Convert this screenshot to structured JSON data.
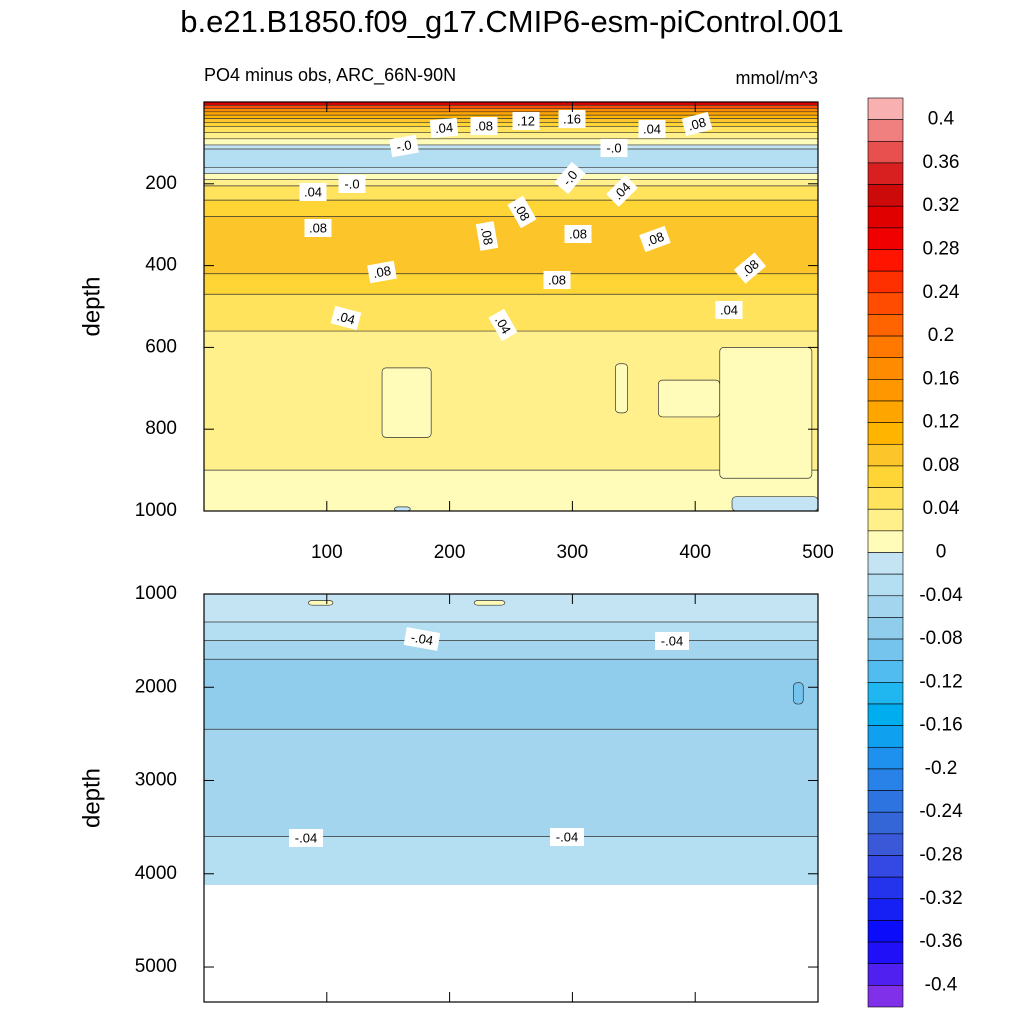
{
  "chart_data": {
    "type": "contour",
    "title": "b.e21.B1850.f09_g17.CMIP6-esm-piControl.001",
    "subtitle": "PO4 minus obs, ARC_66N-90N",
    "units": "mmol/m^3",
    "colorbar": {
      "levels": [
        0.4,
        0.38,
        0.36,
        0.34,
        0.32,
        0.3,
        0.28,
        0.26,
        0.24,
        0.22,
        0.2,
        0.18,
        0.16,
        0.14,
        0.12,
        0.1,
        0.08,
        0.06,
        0.04,
        0.02,
        0,
        -0.02,
        -0.04,
        -0.06,
        -0.08,
        -0.1,
        -0.12,
        -0.14,
        -0.16,
        -0.18,
        -0.2,
        -0.22,
        -0.24,
        -0.26,
        -0.28,
        -0.3,
        -0.32,
        -0.34,
        -0.36,
        -0.38,
        -0.4
      ],
      "colors": [
        "#f8b0b0",
        "#f08080",
        "#e85050",
        "#d82020",
        "#cc0a0a",
        "#e00000",
        "#f00000",
        "#ff1400",
        "#ff3000",
        "#ff4c00",
        "#ff6400",
        "#ff7800",
        "#ff8c00",
        "#ff9800",
        "#ffa500",
        "#ffb400",
        "#fcc52a",
        "#ffd535",
        "#ffe35c",
        "#fff08c",
        "#fffbb8",
        "#c4e4f4",
        "#b4def2",
        "#a3d5ee",
        "#90cdec",
        "#74c4ee",
        "#50bcf0",
        "#20b6f0",
        "#00aef0",
        "#10a0f0",
        "#1e90ee",
        "#2882e8",
        "#2e74e0",
        "#3466d8",
        "#3a58d8",
        "#3448e4",
        "#2434ec",
        "#1620f4",
        "#0a0cfa",
        "#2010f8",
        "#5020f0",
        "#8030e8"
      ],
      "ticks": [
        0.4,
        0.36,
        0.32,
        0.28,
        0.24,
        0.2,
        0.16,
        0.12,
        0.08,
        0.04,
        0,
        -0.04,
        -0.08,
        -0.12,
        -0.16,
        -0.2,
        -0.24,
        -0.28,
        -0.32,
        -0.36,
        -0.4
      ]
    },
    "panels": [
      {
        "ylabel": "depth",
        "xlim": [
          0,
          500
        ],
        "xticks": [
          100,
          200,
          300,
          400,
          500
        ],
        "xtick_labels": true,
        "ylim": [
          0,
          1000
        ],
        "yticks": [
          200,
          400,
          600,
          800,
          1000
        ],
        "y_reversed": true,
        "bands": [
          {
            "top": 0,
            "bottom": 8,
            "value": 0.31
          },
          {
            "top": 8,
            "bottom": 16,
            "value": 0.23
          },
          {
            "top": 16,
            "bottom": 24,
            "value": 0.17
          },
          {
            "top": 24,
            "bottom": 32,
            "value": 0.13
          },
          {
            "top": 32,
            "bottom": 40,
            "value": 0.11
          },
          {
            "top": 40,
            "bottom": 50,
            "value": 0.09
          },
          {
            "top": 50,
            "bottom": 60,
            "value": 0.07
          },
          {
            "top": 60,
            "bottom": 75,
            "value": 0.05
          },
          {
            "top": 75,
            "bottom": 90,
            "value": 0.03
          },
          {
            "top": 90,
            "bottom": 105,
            "value": 0.01
          },
          {
            "top": 105,
            "bottom": 115,
            "value": -0.01
          },
          {
            "top": 115,
            "bottom": 160,
            "value": -0.03
          },
          {
            "top": 160,
            "bottom": 175,
            "value": -0.01
          },
          {
            "top": 175,
            "bottom": 190,
            "value": 0.01
          },
          {
            "top": 190,
            "bottom": 205,
            "value": 0.03
          },
          {
            "top": 205,
            "bottom": 240,
            "value": 0.05
          },
          {
            "top": 240,
            "bottom": 280,
            "value": 0.07
          },
          {
            "top": 280,
            "bottom": 420,
            "value": 0.09
          },
          {
            "top": 420,
            "bottom": 470,
            "value": 0.07
          },
          {
            "top": 470,
            "bottom": 560,
            "value": 0.05
          },
          {
            "top": 560,
            "bottom": 900,
            "value": 0.03
          },
          {
            "top": 900,
            "bottom": 1000,
            "value": 0.01
          }
        ],
        "patches": [
          {
            "x0": 145,
            "x1": 185,
            "top": 650,
            "bottom": 820,
            "value": 0.01
          },
          {
            "x0": 335,
            "x1": 345,
            "top": 640,
            "bottom": 760,
            "value": 0.01
          },
          {
            "x0": 370,
            "x1": 420,
            "top": 680,
            "bottom": 770,
            "value": 0.01
          },
          {
            "x0": 420,
            "x1": 495,
            "top": 600,
            "bottom": 920,
            "value": 0.01
          },
          {
            "x0": 430,
            "x1": 500,
            "top": 965,
            "bottom": 1000,
            "value": -0.01
          },
          {
            "x0": 155,
            "x1": 168,
            "top": 990,
            "bottom": 1000,
            "value": -0.01
          }
        ],
        "contour_labels": [
          ".04",
          ".08",
          ".12",
          ".16",
          ".04",
          ".08",
          "-.0",
          "-.0",
          ".04",
          "-.0",
          "-.0",
          ".04",
          ".08",
          ".08",
          ".08",
          ".08",
          ".08",
          ".08",
          ".08",
          ".08",
          ".04",
          ".04",
          ".04"
        ]
      },
      {
        "ylabel": "depth",
        "xlim": [
          0,
          500
        ],
        "xticks": [
          100,
          200,
          300,
          400,
          500
        ],
        "xtick_labels": false,
        "ylim": [
          1000,
          5375
        ],
        "yticks": [
          1000,
          2000,
          3000,
          4000,
          5000
        ],
        "y_reversed": true,
        "bands": [
          {
            "top": 1000,
            "bottom": 1300,
            "value": -0.01
          },
          {
            "top": 1300,
            "bottom": 1500,
            "value": -0.03
          },
          {
            "top": 1500,
            "bottom": 1700,
            "value": -0.05
          },
          {
            "top": 1700,
            "bottom": 2450,
            "value": -0.07
          },
          {
            "top": 2450,
            "bottom": 3600,
            "value": -0.05
          },
          {
            "top": 3600,
            "bottom": 4120,
            "value": -0.03
          }
        ],
        "patches": [
          {
            "x0": 85,
            "x1": 105,
            "top": 1070,
            "bottom": 1120,
            "value": 0.01
          },
          {
            "x0": 220,
            "x1": 245,
            "top": 1070,
            "bottom": 1120,
            "value": 0.01
          },
          {
            "x0": 480,
            "x1": 488,
            "top": 1950,
            "bottom": 2180,
            "value": -0.09
          }
        ],
        "contour_labels": [
          "-.04",
          "-.04",
          "-.04",
          "-.04"
        ]
      }
    ]
  }
}
